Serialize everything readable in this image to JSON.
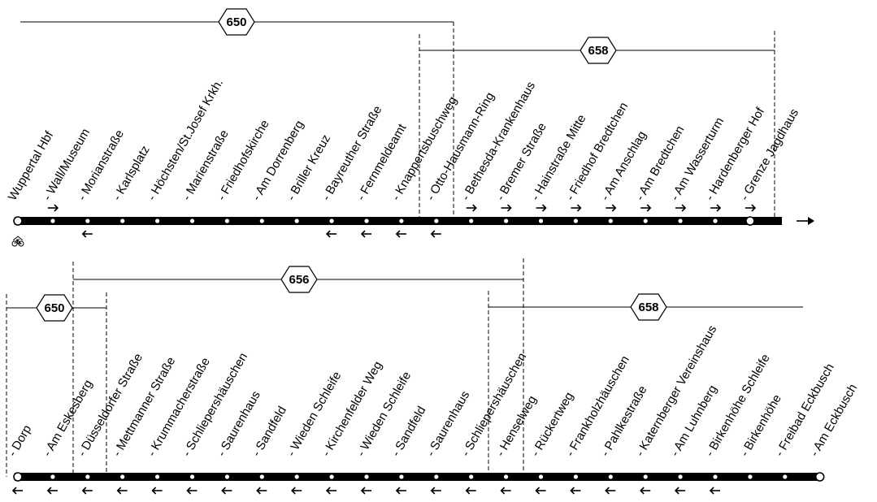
{
  "rows": [
    {
      "stops": [
        "Wuppertal Hbf",
        "- Wall/Museum",
        "- Morianstraße",
        "- Karlsplatz",
        "- Höchsten/St.Josef Krkh.",
        "- Marienstraße",
        "- Friedhofskirche",
        "- Am Dorrenberg",
        "- Briller Kreuz",
        "- Bayreuther Straße",
        "- Fernmeldeamt",
        "- Knappertsbuschweg",
        "- Otto-Hausmann-Ring",
        "- Bethesda-Krankenhaus",
        "- Bremer Straße",
        "- Hainstraße Mitte",
        "- Friedhof Bredtchen",
        "- Am Anschlag",
        "- Am Bredtchen",
        "- Am Wasserturm",
        "- Hardenberger Hof",
        "- Grenze Jagdhaus"
      ],
      "routes": [
        {
          "number": "650"
        },
        {
          "number": "658"
        }
      ],
      "forward_arrow_stops": [
        1,
        13,
        14,
        15,
        16,
        17,
        18,
        19,
        20,
        21
      ],
      "backward_arrow_stops": [
        2,
        9,
        10,
        11,
        12
      ],
      "continues_arrow": true,
      "accessibility_icon": "bicycle-icon"
    },
    {
      "stops": [
        "- Dorp",
        "- Am Eskesberg",
        "- Düsseldorfer Straße",
        "- Mettmanner Straße",
        "- Krummacherstraße",
        "- Schliepershäuschen",
        "- Saurenhaus",
        "- Sandfeld",
        "- Wieden Schleife",
        "- Kirchenfelder Weg",
        "- Wieden Schleife",
        "- Sandfeld",
        "- Saurenhaus",
        "- Schliepershäuschen",
        "- Henselweg",
        "- Rückertweg",
        "- Frankholzhäuschen",
        "- Pahlkestraße",
        "- Katernberger Vereinshaus",
        "- Am Luhnberg",
        "- Birkenhöhe Schleife",
        "- Birkenhöhe",
        "- Freibad Eckbusch",
        "- Am Eckbusch"
      ],
      "routes": [
        {
          "number": "650"
        },
        {
          "number": "656"
        },
        {
          "number": "658"
        }
      ],
      "forward_arrow_stops": [],
      "backward_arrow_stops": [
        0,
        1,
        2,
        3,
        4,
        5,
        6,
        7,
        8,
        9,
        10,
        11,
        12,
        13,
        14,
        15,
        16,
        17,
        18,
        19,
        20
      ],
      "continues_arrow": false
    }
  ]
}
